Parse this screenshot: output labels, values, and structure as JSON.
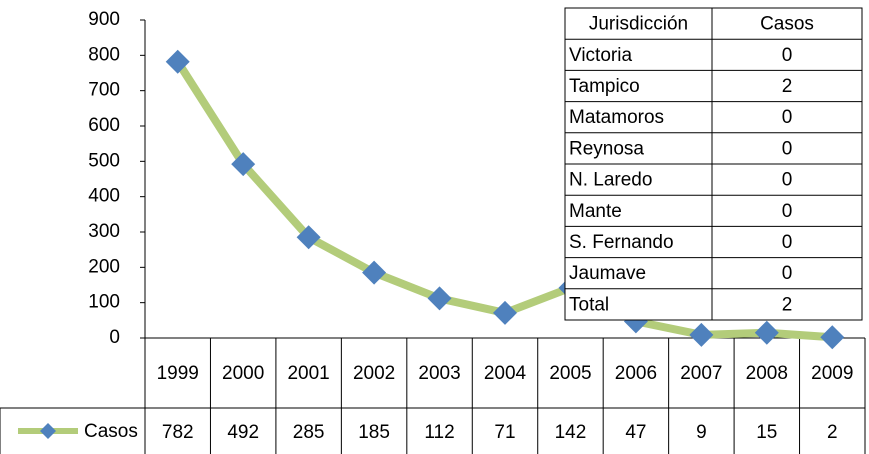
{
  "chart_data": {
    "type": "line",
    "categories": [
      "1999",
      "2000",
      "2001",
      "2002",
      "2003",
      "2004",
      "2005",
      "2006",
      "2007",
      "2008",
      "2009"
    ],
    "series": [
      {
        "name": "Casos",
        "color": "#b3cc7a",
        "marker_color": "#4f81bd",
        "values": [
          782,
          492,
          285,
          185,
          112,
          71,
          142,
          47,
          9,
          15,
          2
        ]
      }
    ],
    "ylim": [
      0,
      900
    ],
    "yticks": [
      0,
      100,
      200,
      300,
      400,
      500,
      600,
      700,
      800,
      900
    ],
    "grid": false
  },
  "table": {
    "headers": [
      "Jurisdicción",
      "Casos"
    ],
    "rows": [
      [
        "Victoria",
        "0"
      ],
      [
        "Tampico",
        "2"
      ],
      [
        "Matamoros",
        "0"
      ],
      [
        "Reynosa",
        "0"
      ],
      [
        "N. Laredo",
        "0"
      ],
      [
        "Mante",
        "0"
      ],
      [
        "S. Fernando",
        "0"
      ],
      [
        "Jaumave",
        "0"
      ],
      [
        "Total",
        "2"
      ]
    ]
  }
}
